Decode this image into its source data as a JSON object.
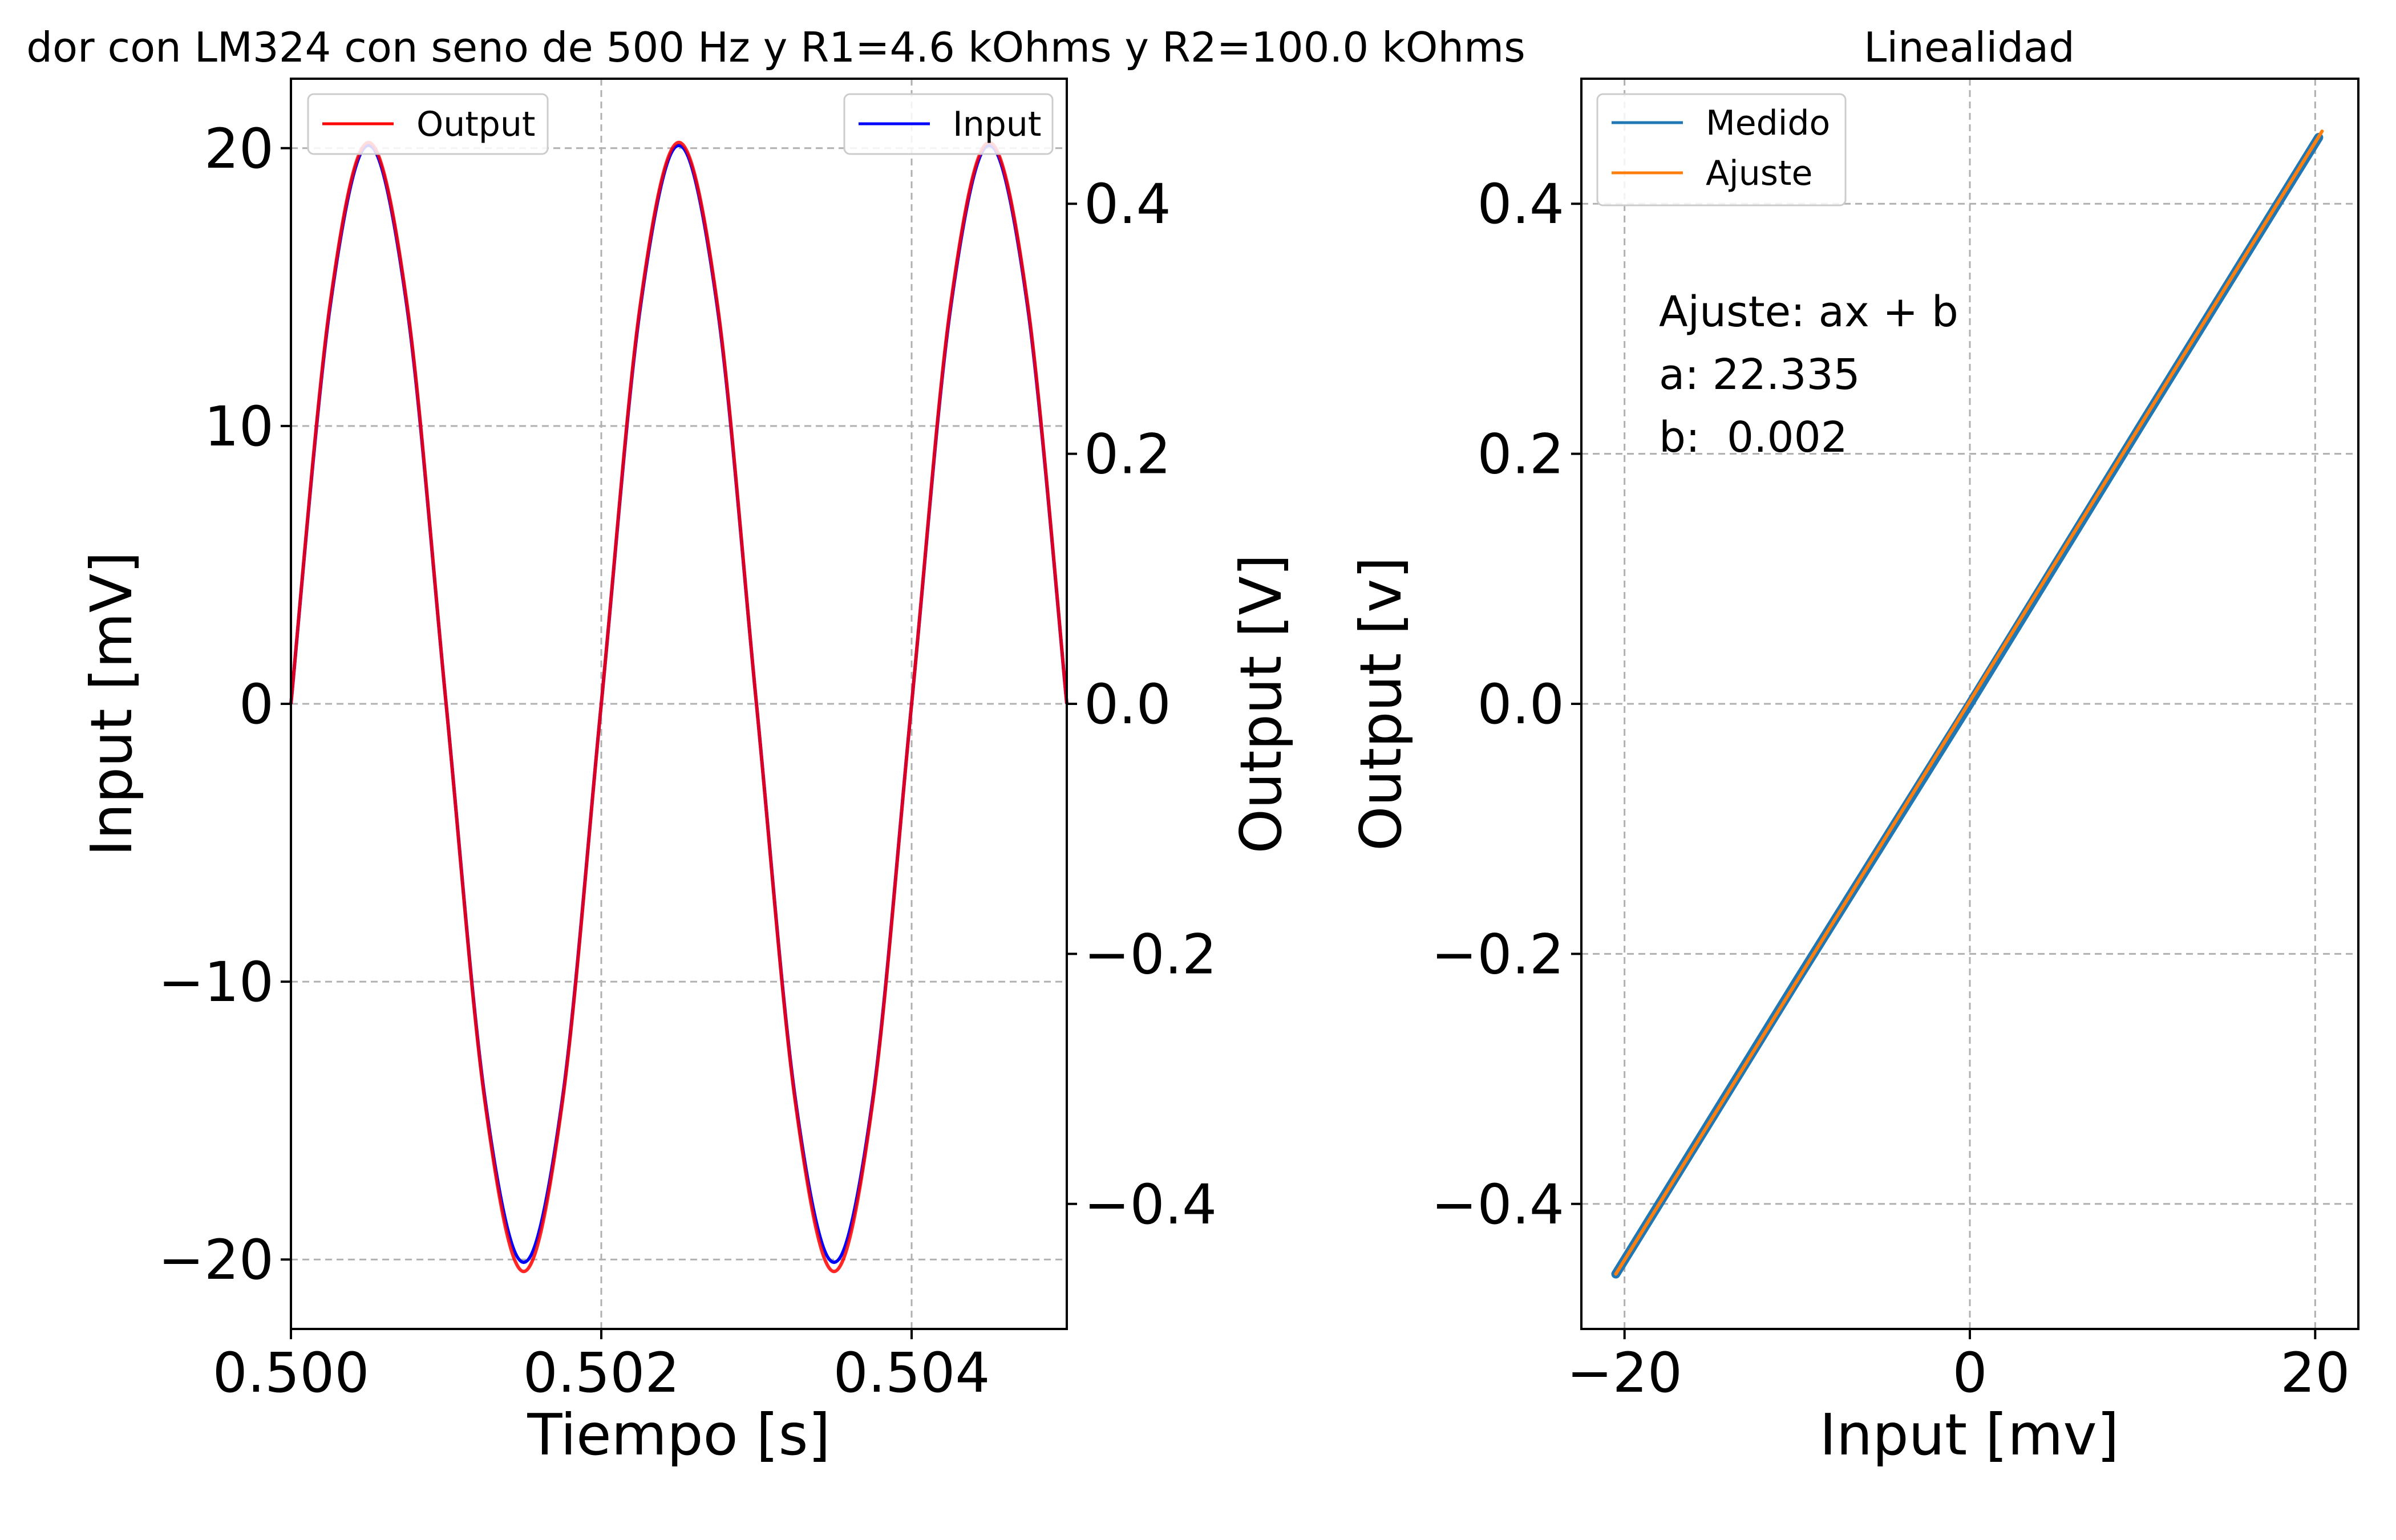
{
  "chart_data": [
    {
      "type": "line",
      "title": "dor con LM324 con seno de 500 Hz y R1=4.6 kOhms y R2=100.0 kOhms",
      "xlabel": "Tiempo [s]",
      "ylabel_left": "Input [mV]",
      "ylabel_right": "Output [V]",
      "xlim": [
        0.5,
        0.505
      ],
      "ylim_left": [
        -22.5,
        22.5
      ],
      "ylim_right": [
        -0.5,
        0.5
      ],
      "x_ticks": [
        "0.500",
        "0.502",
        "0.504"
      ],
      "x_tick_values": [
        0.5,
        0.502,
        0.504
      ],
      "y_left_ticks": [
        "20",
        "10",
        "0",
        "−10",
        "−20"
      ],
      "y_left_tick_values": [
        20,
        10,
        0,
        -10,
        -20
      ],
      "y_right_ticks": [
        "0.4",
        "0.2",
        "0.0",
        "−0.2",
        "−0.4"
      ],
      "y_right_tick_values": [
        0.4,
        0.2,
        0.0,
        -0.2,
        -0.4
      ],
      "grid": true,
      "colors": {
        "input": "#0000ff",
        "output": "#ff0000",
        "ylabel_left": "#0000ff",
        "ylabel_right": "#ff0000"
      },
      "legend": [
        {
          "label": "Output",
          "color": "#ff0000",
          "placement": "upper-left"
        },
        {
          "label": "Input",
          "color": "#0000ff",
          "placement": "upper-right"
        }
      ],
      "series": [
        {
          "name": "Input",
          "axis": "left",
          "x": [
            0.5,
            0.50025,
            0.5005,
            0.50075,
            0.501,
            0.50125,
            0.5015,
            0.50175,
            0.502,
            0.50225,
            0.5025,
            0.50275,
            0.503,
            0.50325,
            0.5035,
            0.50375,
            0.504,
            0.50425,
            0.5045,
            0.50475,
            0.505
          ],
          "values": [
            0,
            14.2,
            20.1,
            14.2,
            0,
            -14.2,
            -20.1,
            -14.2,
            0,
            14.2,
            20.1,
            14.2,
            0,
            -14.2,
            -20.1,
            -14.2,
            0,
            14.2,
            20.1,
            14.2,
            0
          ]
        },
        {
          "name": "Output",
          "axis": "right",
          "x": [
            0.5,
            0.50025,
            0.5005,
            0.50075,
            0.501,
            0.50125,
            0.5015,
            0.50175,
            0.502,
            0.50225,
            0.5025,
            0.50275,
            0.503,
            0.50325,
            0.5035,
            0.50375,
            0.504,
            0.50425,
            0.5045,
            0.50475,
            0.505
          ],
          "values": [
            0,
            0.318,
            0.449,
            0.318,
            0,
            -0.318,
            -0.454,
            -0.318,
            0,
            0.318,
            0.449,
            0.318,
            0,
            -0.318,
            -0.454,
            -0.318,
            0,
            0.318,
            0.449,
            0.318,
            0
          ]
        }
      ]
    },
    {
      "type": "line",
      "title": "Linealidad",
      "xlabel": "Input [mv]",
      "ylabel": "Output [v]",
      "xlim": [
        -22.5,
        22.5
      ],
      "ylim": [
        -0.5,
        0.5
      ],
      "x_ticks": [
        "−20",
        "0",
        "20"
      ],
      "x_tick_values": [
        -20,
        0,
        20
      ],
      "y_ticks": [
        "0.4",
        "0.2",
        "0.0",
        "−0.2",
        "−0.4"
      ],
      "y_tick_values": [
        0.4,
        0.2,
        0.0,
        -0.2,
        -0.4
      ],
      "grid": true,
      "colors": {
        "medido": "#1f77b4",
        "ajuste": "#ff7f0e"
      },
      "legend": [
        {
          "label": "Medido",
          "color": "#1f77b4"
        },
        {
          "label": "Ajuste",
          "color": "#ff7f0e"
        }
      ],
      "legend_placement": "upper-left",
      "annotation": [
        "Ajuste: ax + b",
        "a: 22.335",
        "b:  0.002"
      ],
      "series": [
        {
          "name": "Medido",
          "x": [
            -20.5,
            -10,
            0,
            10,
            20.2
          ],
          "values": [
            -0.456,
            -0.221,
            0.0,
            0.225,
            0.453
          ]
        },
        {
          "name": "Ajuste",
          "x": [
            -20.5,
            20.4
          ],
          "values": [
            -0.456,
            0.458
          ]
        }
      ]
    }
  ]
}
